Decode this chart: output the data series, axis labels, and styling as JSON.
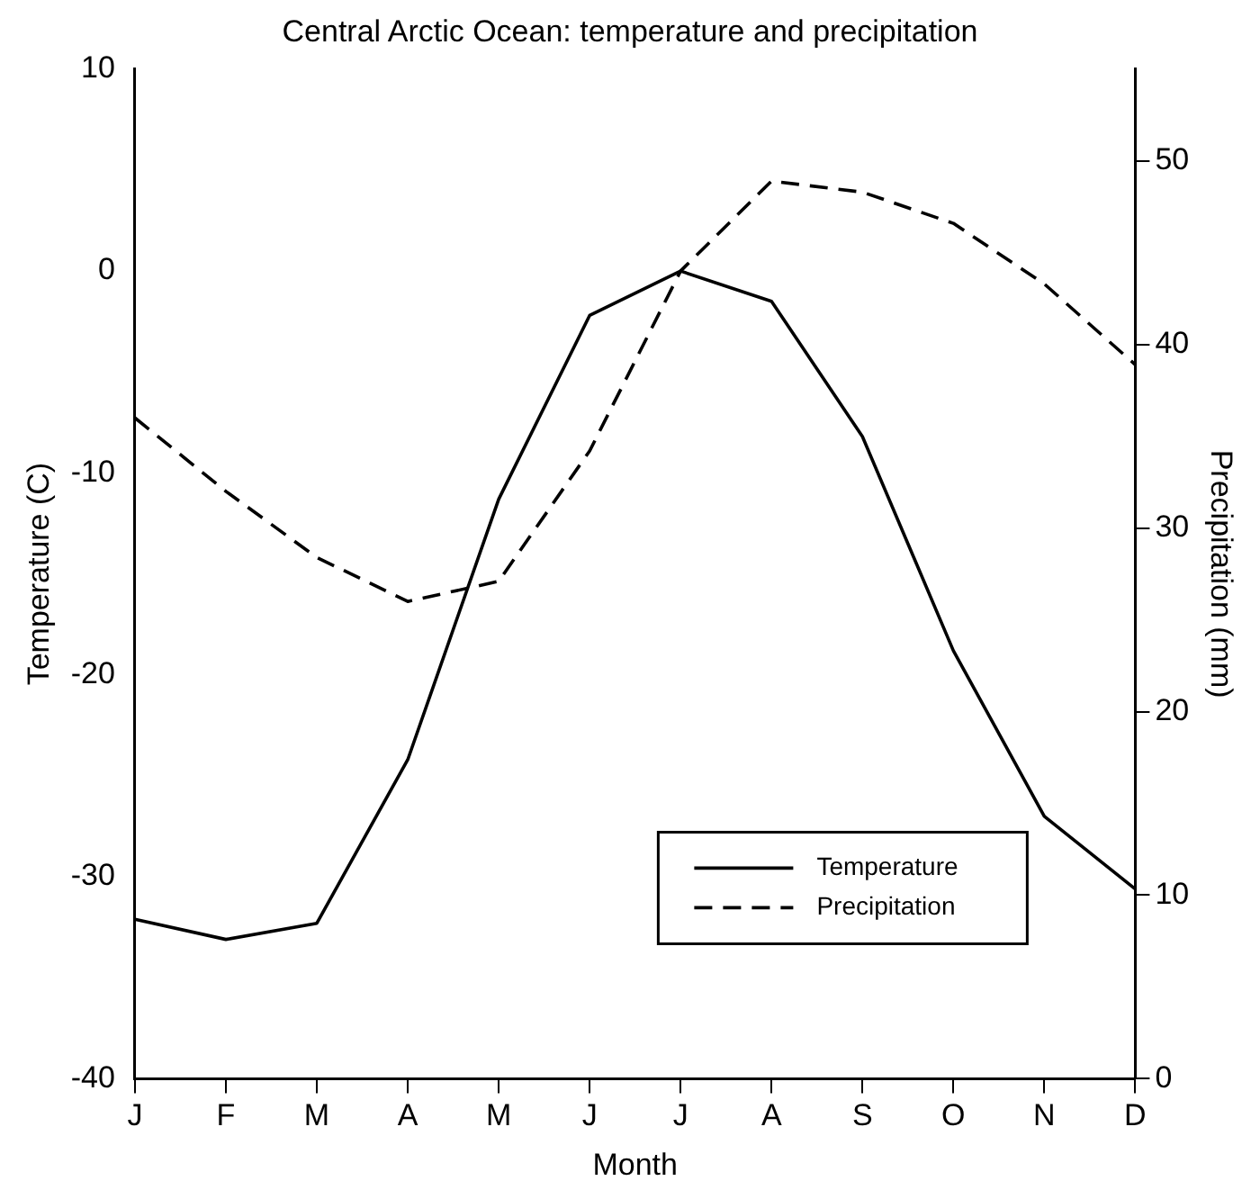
{
  "chart_data": {
    "type": "line",
    "title": "Central Arctic Ocean: temperature and precipitation",
    "xlabel": "Month",
    "ylabel": "Temperature (C)",
    "y2label": "Precipitation (mm)",
    "categories": [
      "J",
      "F",
      "M",
      "A",
      "M",
      "J",
      "J",
      "A",
      "S",
      "O",
      "N",
      "D"
    ],
    "series": [
      {
        "name": "Temperature",
        "color": "#000000",
        "line_style": "solid",
        "values": [
          -32.1,
          -33.1,
          -32.3,
          -24.2,
          -11.3,
          -2.2,
          0,
          -1.5,
          -8.2,
          -18.8,
          -27,
          -30.6
        ]
      },
      {
        "name": "Precipitation",
        "color": "#000000",
        "line_style": "dashed",
        "axis": "y2",
        "values": [
          36,
          32,
          28.4,
          26,
          27.1,
          34.2,
          44,
          48.9,
          48.3,
          46.6,
          43.3,
          38.9
        ]
      }
    ],
    "ylim": [
      -40,
      10
    ],
    "yticks": [
      -40,
      -30,
      -20,
      -10,
      0,
      10
    ],
    "y2lim": [
      0,
      55
    ],
    "y2ticks": [
      0,
      10,
      20,
      30,
      40,
      50
    ],
    "legend": "bottom right",
    "grid": false,
    "marker": "none"
  }
}
